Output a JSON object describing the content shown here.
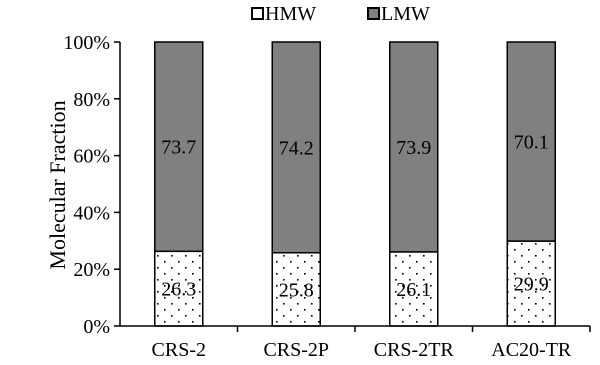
{
  "chart_data": {
    "type": "bar",
    "stacked": true,
    "percent_stacked": true,
    "categories": [
      "CRS-2",
      "CRS-2P",
      "CRS-2TR",
      "AC20-TR"
    ],
    "series": [
      {
        "name": "HMW",
        "values": [
          26.3,
          25.8,
          26.1,
          29.9
        ],
        "labels": [
          "26.3",
          "25.8",
          "26.1",
          "29.9"
        ],
        "fill": "dotted-white"
      },
      {
        "name": "LMW",
        "values": [
          73.7,
          74.2,
          73.9,
          70.1
        ],
        "labels": [
          "73.7",
          "74.2",
          "73.9",
          "70.1"
        ],
        "color": "#808080"
      }
    ],
    "ylabel": "Molecular Fraction",
    "xlabel": "",
    "title": "",
    "ylim": [
      0,
      100
    ],
    "yticks": [
      0,
      20,
      40,
      60,
      80,
      100
    ],
    "ytick_labels": [
      "0%",
      "20%",
      "40%",
      "60%",
      "80%",
      "100%"
    ],
    "legend_position": "top",
    "grid": false
  }
}
